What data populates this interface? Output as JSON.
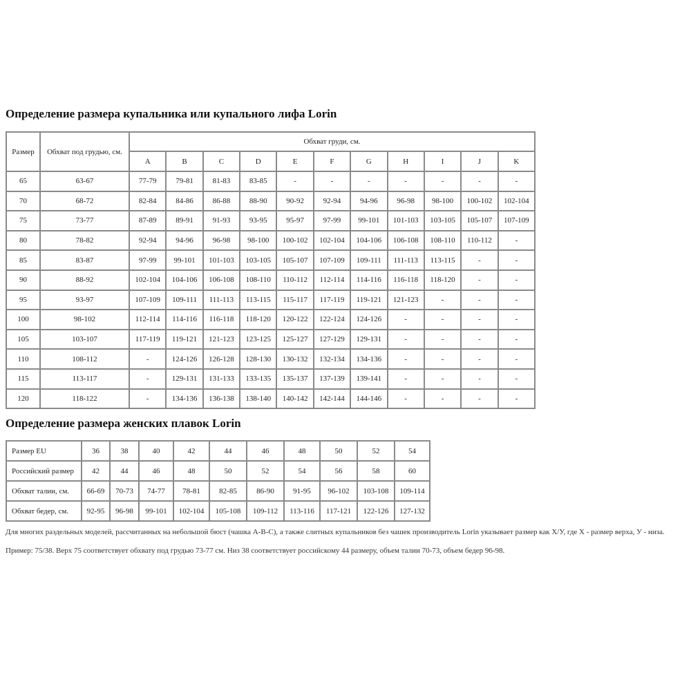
{
  "bra": {
    "title": "Определение размера купальника или купального лифа Lorin",
    "header_size": "Размер",
    "header_underbust": "Обхват под грудью, см.",
    "header_bust": "Обхват груди, см.",
    "cups": [
      "A",
      "B",
      "C",
      "D",
      "E",
      "F",
      "G",
      "H",
      "I",
      "J",
      "K"
    ],
    "rows": [
      [
        "65",
        "63-67",
        "77-79",
        "79-81",
        "81-83",
        "83-85",
        "-",
        "-",
        "-",
        "-",
        "-",
        "-",
        "-"
      ],
      [
        "70",
        "68-72",
        "82-84",
        "84-86",
        "86-88",
        "88-90",
        "90-92",
        "92-94",
        "94-96",
        "96-98",
        "98-100",
        "100-102",
        "102-104"
      ],
      [
        "75",
        "73-77",
        "87-89",
        "89-91",
        "91-93",
        "93-95",
        "95-97",
        "97-99",
        "99-101",
        "101-103",
        "103-105",
        "105-107",
        "107-109"
      ],
      [
        "80",
        "78-82",
        "92-94",
        "94-96",
        "96-98",
        "98-100",
        "100-102",
        "102-104",
        "104-106",
        "106-108",
        "108-110",
        "110-112",
        "-"
      ],
      [
        "85",
        "83-87",
        "97-99",
        "99-101",
        "101-103",
        "103-105",
        "105-107",
        "107-109",
        "109-111",
        "111-113",
        "113-115",
        "-",
        "-"
      ],
      [
        "90",
        "88-92",
        "102-104",
        "104-106",
        "106-108",
        "108-110",
        "110-112",
        "112-114",
        "114-116",
        "116-118",
        "118-120",
        "-",
        "-"
      ],
      [
        "95",
        "93-97",
        "107-109",
        "109-111",
        "111-113",
        "113-115",
        "115-117",
        "117-119",
        "119-121",
        "121-123",
        "-",
        "-",
        "-"
      ],
      [
        "100",
        "98-102",
        "112-114",
        "114-116",
        "116-118",
        "118-120",
        "120-122",
        "122-124",
        "124-126",
        "-",
        "-",
        "-",
        "-"
      ],
      [
        "105",
        "103-107",
        "117-119",
        "119-121",
        "121-123",
        "123-125",
        "125-127",
        "127-129",
        "129-131",
        "-",
        "-",
        "-",
        "-"
      ],
      [
        "110",
        "108-112",
        "-",
        "124-126",
        "126-128",
        "128-130",
        "130-132",
        "132-134",
        "134-136",
        "-",
        "-",
        "-",
        "-"
      ],
      [
        "115",
        "113-117",
        "-",
        "129-131",
        "131-133",
        "133-135",
        "135-137",
        "137-139",
        "139-141",
        "-",
        "-",
        "-",
        "-"
      ],
      [
        "120",
        "118-122",
        "-",
        "134-136",
        "136-138",
        "138-140",
        "140-142",
        "142-144",
        "144-146",
        "-",
        "-",
        "-",
        "-"
      ]
    ]
  },
  "briefs": {
    "title": "Определение размера женских плавок Lorin",
    "rows": [
      [
        "Размер EU",
        "36",
        "38",
        "40",
        "42",
        "44",
        "46",
        "48",
        "50",
        "52",
        "54"
      ],
      [
        "Российский размер",
        "42",
        "44",
        "46",
        "48",
        "50",
        "52",
        "54",
        "56",
        "58",
        "60"
      ],
      [
        "Обхват талии, см.",
        "66-69",
        "70-73",
        "74-77",
        "78-81",
        "82-85",
        "86-90",
        "91-95",
        "96-102",
        "103-108",
        "109-114"
      ],
      [
        "Обхват бедер, см.",
        "92-95",
        "96-98",
        "99-101",
        "102-104",
        "105-108",
        "109-112",
        "113-116",
        "117-121",
        "122-126",
        "127-132"
      ]
    ]
  },
  "notes": [
    "Для многих раздельных моделей, рассчитанных на небольшой бюст (чашка А-В-С), а также слитных купальников без чашек производитель Lorin указывает размер как Х/У, где Х - размер верха, У - низа.",
    "Пример: 75/38. Верх 75 соответствует обхвату под грудью 73-77 см. Низ 38 соответствует российскому 44 размеру, объем талии 70-73, объем бедер 96-98."
  ]
}
